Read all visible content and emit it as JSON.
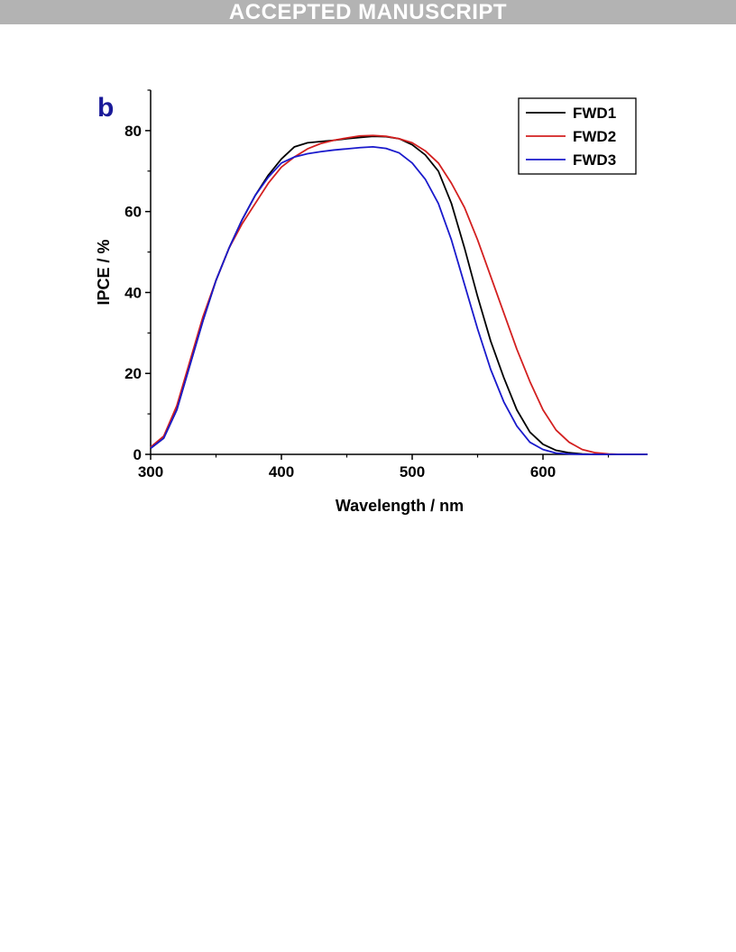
{
  "banner": {
    "text": "ACCEPTED MANUSCRIPT"
  },
  "chart_data": {
    "type": "line",
    "panel_label": "b",
    "xlabel": "Wavelength / nm",
    "ylabel": "IPCE / %",
    "xlim": [
      300,
      680
    ],
    "ylim": [
      0,
      90
    ],
    "xticks": [
      300,
      400,
      500,
      600
    ],
    "yticks": [
      0,
      20,
      40,
      60,
      80
    ],
    "grid": false,
    "legend_position": "top-right",
    "series": [
      {
        "name": "FWD1",
        "color": "#000000",
        "x": [
          300,
          310,
          320,
          330,
          340,
          350,
          360,
          370,
          380,
          390,
          400,
          410,
          420,
          430,
          440,
          450,
          460,
          470,
          480,
          490,
          500,
          510,
          520,
          530,
          540,
          550,
          560,
          570,
          580,
          590,
          600,
          610,
          620,
          630,
          640,
          650,
          660,
          670,
          680
        ],
        "y": [
          1.5,
          4,
          11,
          22,
          33,
          43,
          51,
          58,
          64,
          69,
          73,
          76,
          77,
          77.3,
          77.6,
          78,
          78.3,
          78.6,
          78.5,
          78,
          76.5,
          74,
          70,
          62,
          51,
          39,
          28,
          19,
          11,
          5.5,
          2.5,
          1,
          0.4,
          0.1,
          0,
          0,
          0,
          0,
          0
        ]
      },
      {
        "name": "FWD2",
        "color": "#d32020",
        "x": [
          300,
          310,
          320,
          330,
          340,
          350,
          360,
          370,
          380,
          390,
          400,
          410,
          420,
          430,
          440,
          450,
          460,
          470,
          480,
          490,
          500,
          510,
          520,
          530,
          540,
          550,
          560,
          570,
          580,
          590,
          600,
          610,
          620,
          630,
          640,
          650,
          660,
          670,
          680
        ],
        "y": [
          1.8,
          4.5,
          12,
          23,
          34,
          43,
          51,
          57,
          62,
          67,
          71,
          73.5,
          75.5,
          76.8,
          77.6,
          78.2,
          78.7,
          78.8,
          78.6,
          78,
          77,
          75,
          72,
          67,
          61,
          53,
          44,
          35,
          26,
          18,
          11,
          6,
          3,
          1.2,
          0.4,
          0.1,
          0,
          0,
          0
        ]
      },
      {
        "name": "FWD3",
        "color": "#1a1acc",
        "x": [
          300,
          310,
          320,
          330,
          340,
          350,
          360,
          370,
          380,
          390,
          400,
          410,
          420,
          430,
          440,
          450,
          460,
          470,
          480,
          490,
          500,
          510,
          520,
          530,
          540,
          550,
          560,
          570,
          580,
          590,
          600,
          610,
          620,
          630,
          640,
          650,
          660,
          670,
          680
        ],
        "y": [
          1.5,
          4,
          11,
          22,
          33,
          43,
          51,
          58,
          64,
          68.5,
          72,
          73.5,
          74.3,
          74.8,
          75.2,
          75.5,
          75.8,
          76,
          75.6,
          74.5,
          72,
          68,
          62,
          53,
          42,
          31,
          21,
          13,
          7,
          3,
          1.2,
          0.3,
          0.1,
          0,
          0,
          0,
          0,
          0,
          0
        ]
      }
    ]
  }
}
